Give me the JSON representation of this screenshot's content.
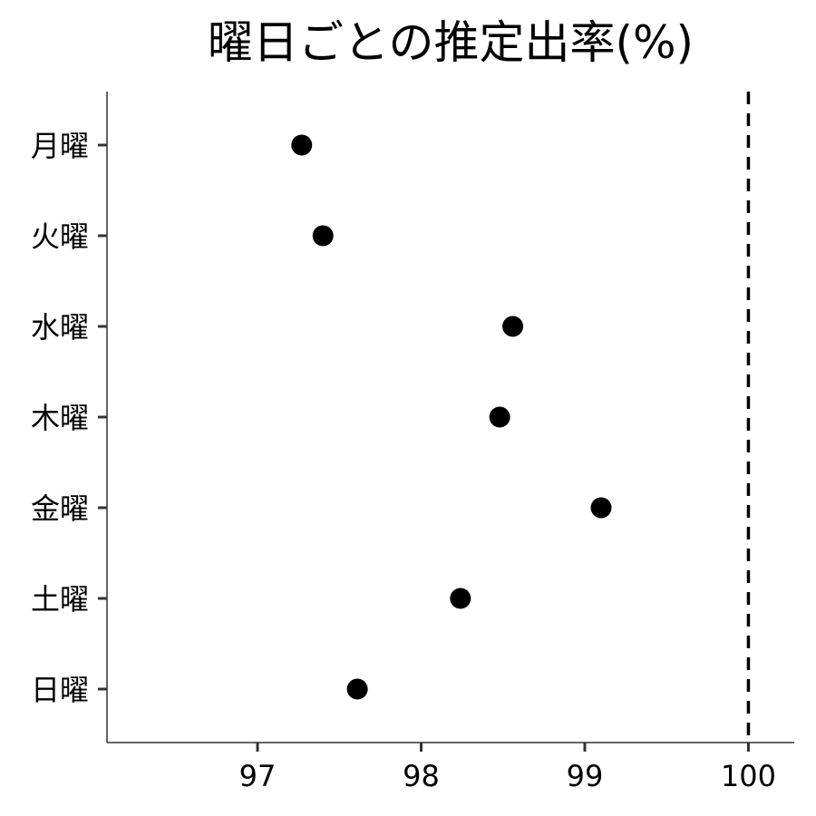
{
  "chart_data": {
    "type": "scatter",
    "title": "曜日ごとの推定出率(%)",
    "xlabel": "",
    "ylabel": "",
    "categories": [
      "月曜",
      "火曜",
      "水曜",
      "木曜",
      "金曜",
      "土曜",
      "日曜"
    ],
    "values": [
      97.27,
      97.4,
      98.56,
      98.48,
      99.1,
      98.24,
      97.61
    ],
    "xlim": [
      96.08,
      100.28
    ],
    "xticks": [
      97,
      98,
      99,
      100
    ],
    "reference_line": {
      "x": 100,
      "style": "dashed"
    },
    "grid": false,
    "legend": "none",
    "colors": {
      "point": "#000000",
      "axis": "#333333",
      "reference_line": "#000000"
    }
  }
}
